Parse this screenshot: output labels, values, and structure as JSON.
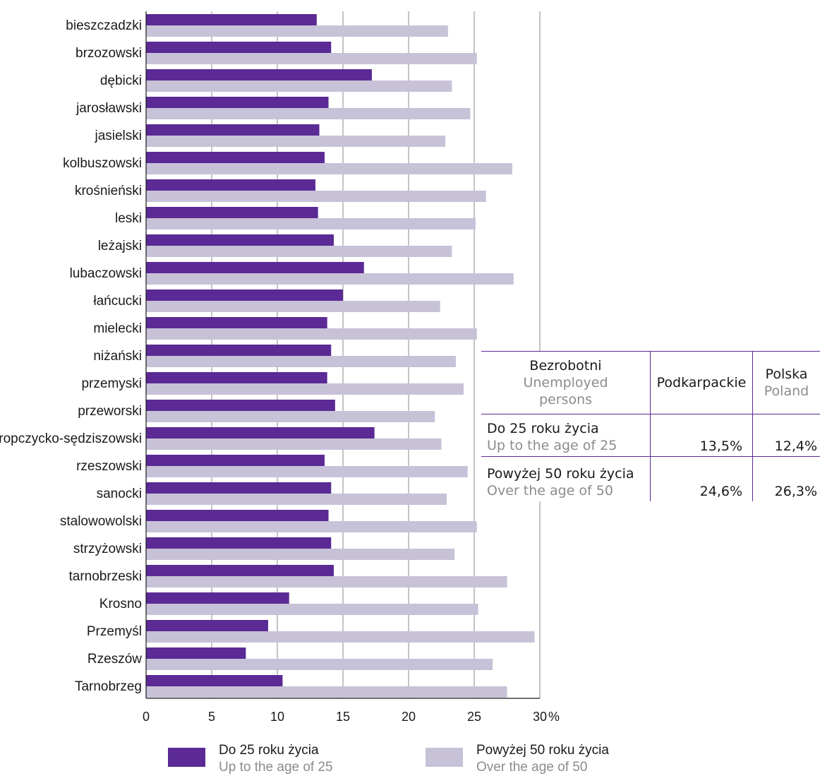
{
  "chart_data": {
    "type": "bar",
    "orientation": "horizontal",
    "categories": [
      "bieszczadzki",
      "brzozowski",
      "dębicki",
      "jarosławski",
      "jasielski",
      "kolbuszowski",
      "krośnieński",
      "leski",
      "leżajski",
      "lubaczowski",
      "łańcucki",
      "mielecki",
      "niżański",
      "przemyski",
      "przeworski",
      "ropczycko-sędziszowski",
      "rzeszowski",
      "sanocki",
      "stalowowolski",
      "strzyżowski",
      "tarnobrzeski",
      "Krosno",
      "Przemyśl",
      "Rzeszów",
      "Tarnobrzeg"
    ],
    "series": [
      {
        "name": "Do 25 roku życia",
        "name_en": "Up to the age of 25",
        "color": "#5b2a95",
        "values": [
          13.0,
          14.1,
          17.2,
          13.9,
          13.2,
          13.6,
          12.9,
          13.1,
          14.3,
          16.6,
          15.0,
          13.8,
          14.1,
          13.8,
          14.4,
          17.4,
          13.6,
          14.1,
          13.9,
          14.1,
          14.3,
          10.9,
          9.3,
          7.6,
          10.4
        ]
      },
      {
        "name": "Powyżej 50 roku życia",
        "name_en": "Over the age of 50",
        "color": "#c7c2d8",
        "values": [
          23.0,
          25.2,
          23.3,
          24.7,
          22.8,
          27.9,
          25.9,
          25.1,
          23.3,
          28.0,
          22.4,
          25.2,
          23.6,
          24.2,
          22.0,
          22.5,
          24.5,
          22.9,
          25.2,
          23.5,
          27.5,
          25.3,
          29.6,
          26.4,
          27.5
        ]
      }
    ],
    "xlim": [
      0,
      30
    ],
    "xticks": [
      "0",
      "5",
      "10",
      "15",
      "20",
      "25",
      "30"
    ],
    "xunit": "%",
    "grid": true
  },
  "summary_table": {
    "header": {
      "col1_main": "Bezrobotni",
      "col1_sub": "Unemployed persons",
      "col2": "Podkarpackie",
      "col3_main": "Polska",
      "col3_sub": "Poland"
    },
    "rows": [
      {
        "label_main": "Do 25 roku życia",
        "label_sub": "Up to the age of 25",
        "podkarpackie": "13,5%",
        "polska": "12,4%"
      },
      {
        "label_main": "Powyżej 50 roku życia",
        "label_sub": "Over the age of 50",
        "podkarpackie": "24,6%",
        "polska": "26,3%"
      }
    ]
  },
  "legend": [
    {
      "label": "Do 25 roku życia",
      "label_en": "Up to the age of 25",
      "color": "#5b2a95"
    },
    {
      "label": "Powyżej 50 roku życia",
      "label_en": "Over the age of 50",
      "color": "#c7c2d8"
    }
  ]
}
